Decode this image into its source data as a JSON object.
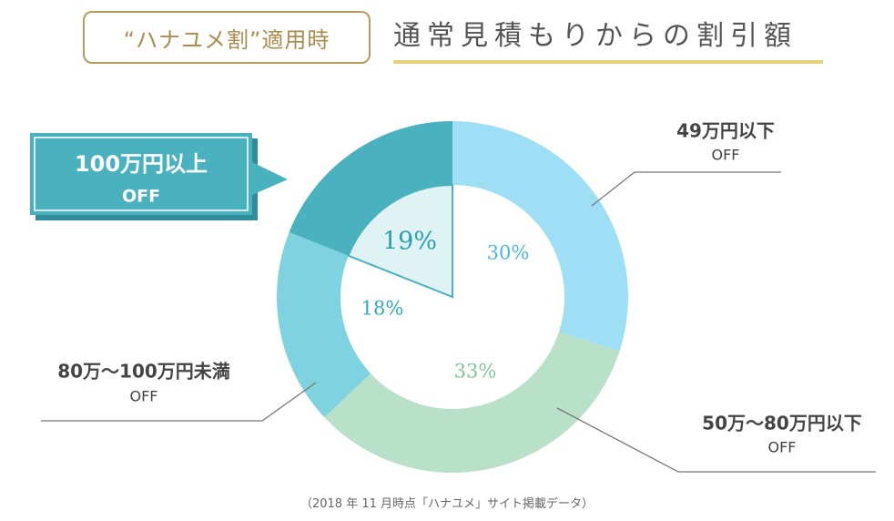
{
  "header": {
    "badge_text": "“ハナユメ割”適用時",
    "title": "通常見積もりからの割引額"
  },
  "footnote": "（2018 年 11 月時点「ハナユメ」サイト掲載データ）",
  "colors": {
    "badge_gold": "#b89a5c",
    "title_underline": "#e4d37a",
    "callout_teal": "#4ab2bf"
  },
  "chart_data": {
    "type": "pie",
    "style": "donut",
    "slices": [
      {
        "category_line1": "49万円以下",
        "category_line2": "OFF",
        "value": 30,
        "label": "30%",
        "color": "#9fdff6",
        "text_color": "#4bb8d9"
      },
      {
        "category_line1": "50万〜80万円以下",
        "category_line2": "OFF",
        "value": 33,
        "label": "33%",
        "color": "#b9e1ca",
        "text_color": "#7ec69b"
      },
      {
        "category_line1": "80万〜100万円未満",
        "category_line2": "OFF",
        "value": 18,
        "label": "18%",
        "color": "#7fd2df",
        "text_color": "#2ea9bc"
      },
      {
        "category_line1": "100万円以上",
        "category_line2": "OFF",
        "value": 19,
        "label": "19%",
        "color": "#4ab2bf",
        "text_color": "#2c9faf",
        "highlighted": true
      }
    ]
  }
}
